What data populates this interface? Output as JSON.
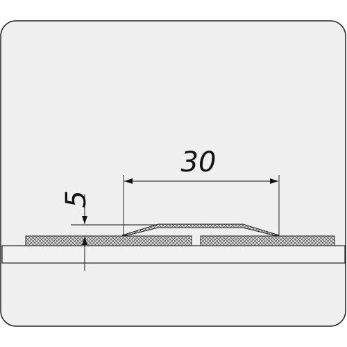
{
  "diagram": {
    "dimensions": {
      "width_label": "30",
      "height_label": "5"
    },
    "colors": {
      "panel_fill": "#efefef",
      "panel_stroke": "#222222",
      "line": "#111111",
      "hatch": "#555555",
      "base_fill": "#f2f2f2"
    }
  }
}
